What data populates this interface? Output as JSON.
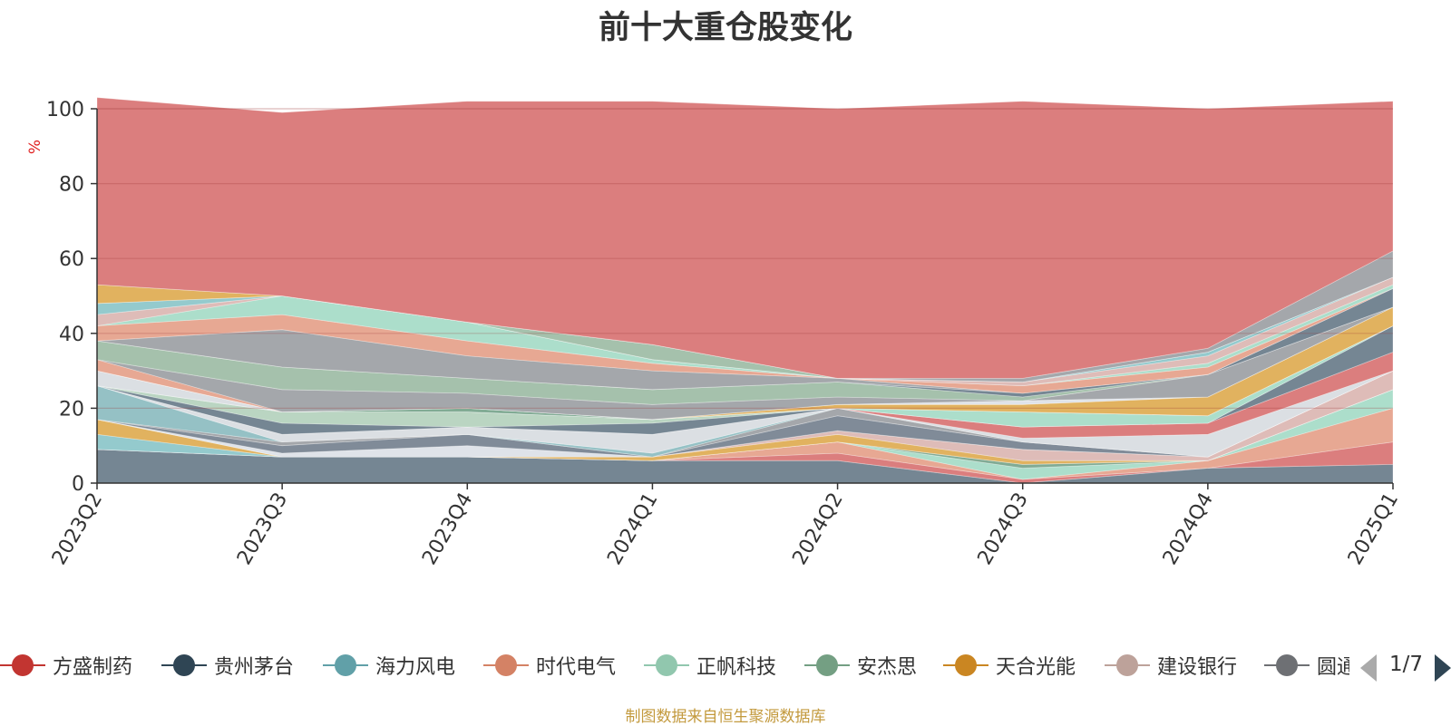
{
  "footer": "制图数据来自恒生聚源数据库",
  "legend_page": "1/7",
  "chart_data": {
    "type": "area",
    "stacked": true,
    "title": "前十大重仓股变化",
    "ylabel": "%",
    "ylim": [
      0,
      100
    ],
    "yticks": [
      0,
      20,
      40,
      60,
      80,
      100
    ],
    "grid": true,
    "legend_position": "bottom",
    "categories": [
      "2023Q2",
      "2023Q3",
      "2023Q4",
      "2024Q1",
      "2024Q2",
      "2024Q3",
      "2024Q4",
      "2025Q1"
    ],
    "series": [
      {
        "color": "#6e7f8d",
        "values": [
          9,
          7,
          7,
          6,
          6,
          0,
          4,
          5
        ]
      },
      {
        "color": "#d97777",
        "values": [
          0,
          0,
          0,
          0,
          2,
          1,
          0,
          6
        ]
      },
      {
        "color": "#e6a38d",
        "values": [
          0,
          0,
          0,
          0,
          3,
          0,
          2,
          9
        ]
      },
      {
        "color": "#a8dcc8",
        "values": [
          0,
          0,
          0,
          0,
          0,
          3,
          0,
          5
        ]
      },
      {
        "color": "#7aa68e",
        "values": [
          0,
          0,
          0,
          0,
          0,
          1,
          0,
          0
        ]
      },
      {
        "color": "#8ec7ca",
        "values": [
          4,
          0,
          0,
          0,
          0,
          0,
          0,
          0
        ]
      },
      {
        "color": "#dfae56",
        "values": [
          4,
          0,
          0,
          1,
          2,
          1,
          0,
          0
        ]
      },
      {
        "color": "#dcb8b4",
        "values": [
          0,
          0,
          0,
          0,
          1,
          3,
          1,
          5
        ]
      },
      {
        "color": "#dde2e8",
        "values": [
          0,
          1,
          3,
          0,
          0,
          0,
          0,
          0
        ]
      },
      {
        "color": "#798592",
        "values": [
          0,
          2,
          3,
          0,
          4,
          2,
          0,
          0
        ]
      },
      {
        "color": "#9fa2a7",
        "values": [
          0,
          1,
          0,
          0,
          2,
          0,
          0,
          0
        ]
      },
      {
        "color": "#8fbec2",
        "values": [
          9,
          0,
          0,
          1,
          0,
          0,
          0,
          0
        ]
      },
      {
        "color": "#d9dde2",
        "values": [
          0,
          2,
          2,
          5,
          0,
          1,
          6,
          0
        ]
      },
      {
        "color": "#d97777",
        "values": [
          0,
          0,
          0,
          0,
          0,
          3,
          3,
          5
        ]
      },
      {
        "color": "#6e7f8d",
        "values": [
          0,
          3,
          0,
          3,
          0,
          0,
          0,
          7
        ]
      },
      {
        "color": "#b6d3bf",
        "values": [
          0,
          3,
          4,
          1,
          0,
          0,
          0,
          0
        ]
      },
      {
        "color": "#a8dcc8",
        "values": [
          0,
          0,
          0,
          0,
          0,
          4,
          2,
          0
        ]
      },
      {
        "color": "#d9dde2",
        "values": [
          4,
          0,
          0,
          0,
          0,
          0,
          0,
          0
        ]
      },
      {
        "color": "#7aa68e",
        "values": [
          0,
          0,
          1,
          0,
          0,
          0,
          0,
          0
        ]
      },
      {
        "color": "#dfae56",
        "values": [
          0,
          0,
          0,
          0,
          1,
          2,
          5,
          5
        ]
      },
      {
        "color": "#dde2e8",
        "values": [
          0,
          0,
          0,
          0,
          0,
          1,
          0,
          0
        ]
      },
      {
        "color": "#e6a38d",
        "values": [
          3,
          0,
          0,
          0,
          0,
          0,
          0,
          0
        ]
      },
      {
        "color": "#9fa2a7",
        "values": [
          0,
          6,
          4,
          4,
          2,
          0,
          6,
          0
        ]
      },
      {
        "color": "#a0bea8",
        "values": [
          5,
          6,
          4,
          4,
          4,
          1,
          0,
          0
        ]
      },
      {
        "color": "#6e7f8d",
        "values": [
          0,
          0,
          0,
          0,
          0,
          1,
          0,
          5
        ]
      },
      {
        "color": "#9fa2a7",
        "values": [
          0,
          10,
          6,
          5,
          1,
          0,
          0,
          0
        ]
      },
      {
        "color": "#e6a38d",
        "values": [
          4,
          4,
          4,
          2,
          0,
          2,
          2,
          0
        ]
      },
      {
        "color": "#a8dcc8",
        "values": [
          0,
          5,
          5,
          1,
          0,
          0,
          1,
          1
        ]
      },
      {
        "color": "#dcb8b4",
        "values": [
          3,
          0,
          0,
          0,
          0,
          1,
          2,
          2
        ]
      },
      {
        "color": "#8ec7ca",
        "values": [
          3,
          0,
          0,
          0,
          0,
          0,
          1,
          0
        ]
      },
      {
        "color": "#a0bea8",
        "values": [
          0,
          0,
          0,
          4,
          0,
          0,
          0,
          0
        ]
      },
      {
        "color": "#dfae56",
        "values": [
          5,
          0,
          0,
          0,
          0,
          0,
          0,
          0
        ]
      },
      {
        "color": "#9fa2a7",
        "values": [
          0,
          0,
          0,
          0,
          0,
          1,
          1,
          7
        ]
      },
      {
        "color": "#d97777",
        "values": [
          50,
          49,
          59,
          65,
          72,
          74,
          64,
          40
        ]
      }
    ],
    "legend": [
      {
        "name": "方盛制药",
        "color": "#c23531"
      },
      {
        "name": "贵州茅台",
        "color": "#2f4554"
      },
      {
        "name": "海力风电",
        "color": "#61a0a8"
      },
      {
        "name": "时代电气",
        "color": "#d48265"
      },
      {
        "name": "正帆科技",
        "color": "#91c7ae"
      },
      {
        "name": "安杰思",
        "color": "#749f83"
      },
      {
        "name": "天合光能",
        "color": "#ca8622"
      },
      {
        "name": "建设银行",
        "color": "#bda29a"
      },
      {
        "name": "圆通速递",
        "color": "#6e7074"
      }
    ]
  }
}
